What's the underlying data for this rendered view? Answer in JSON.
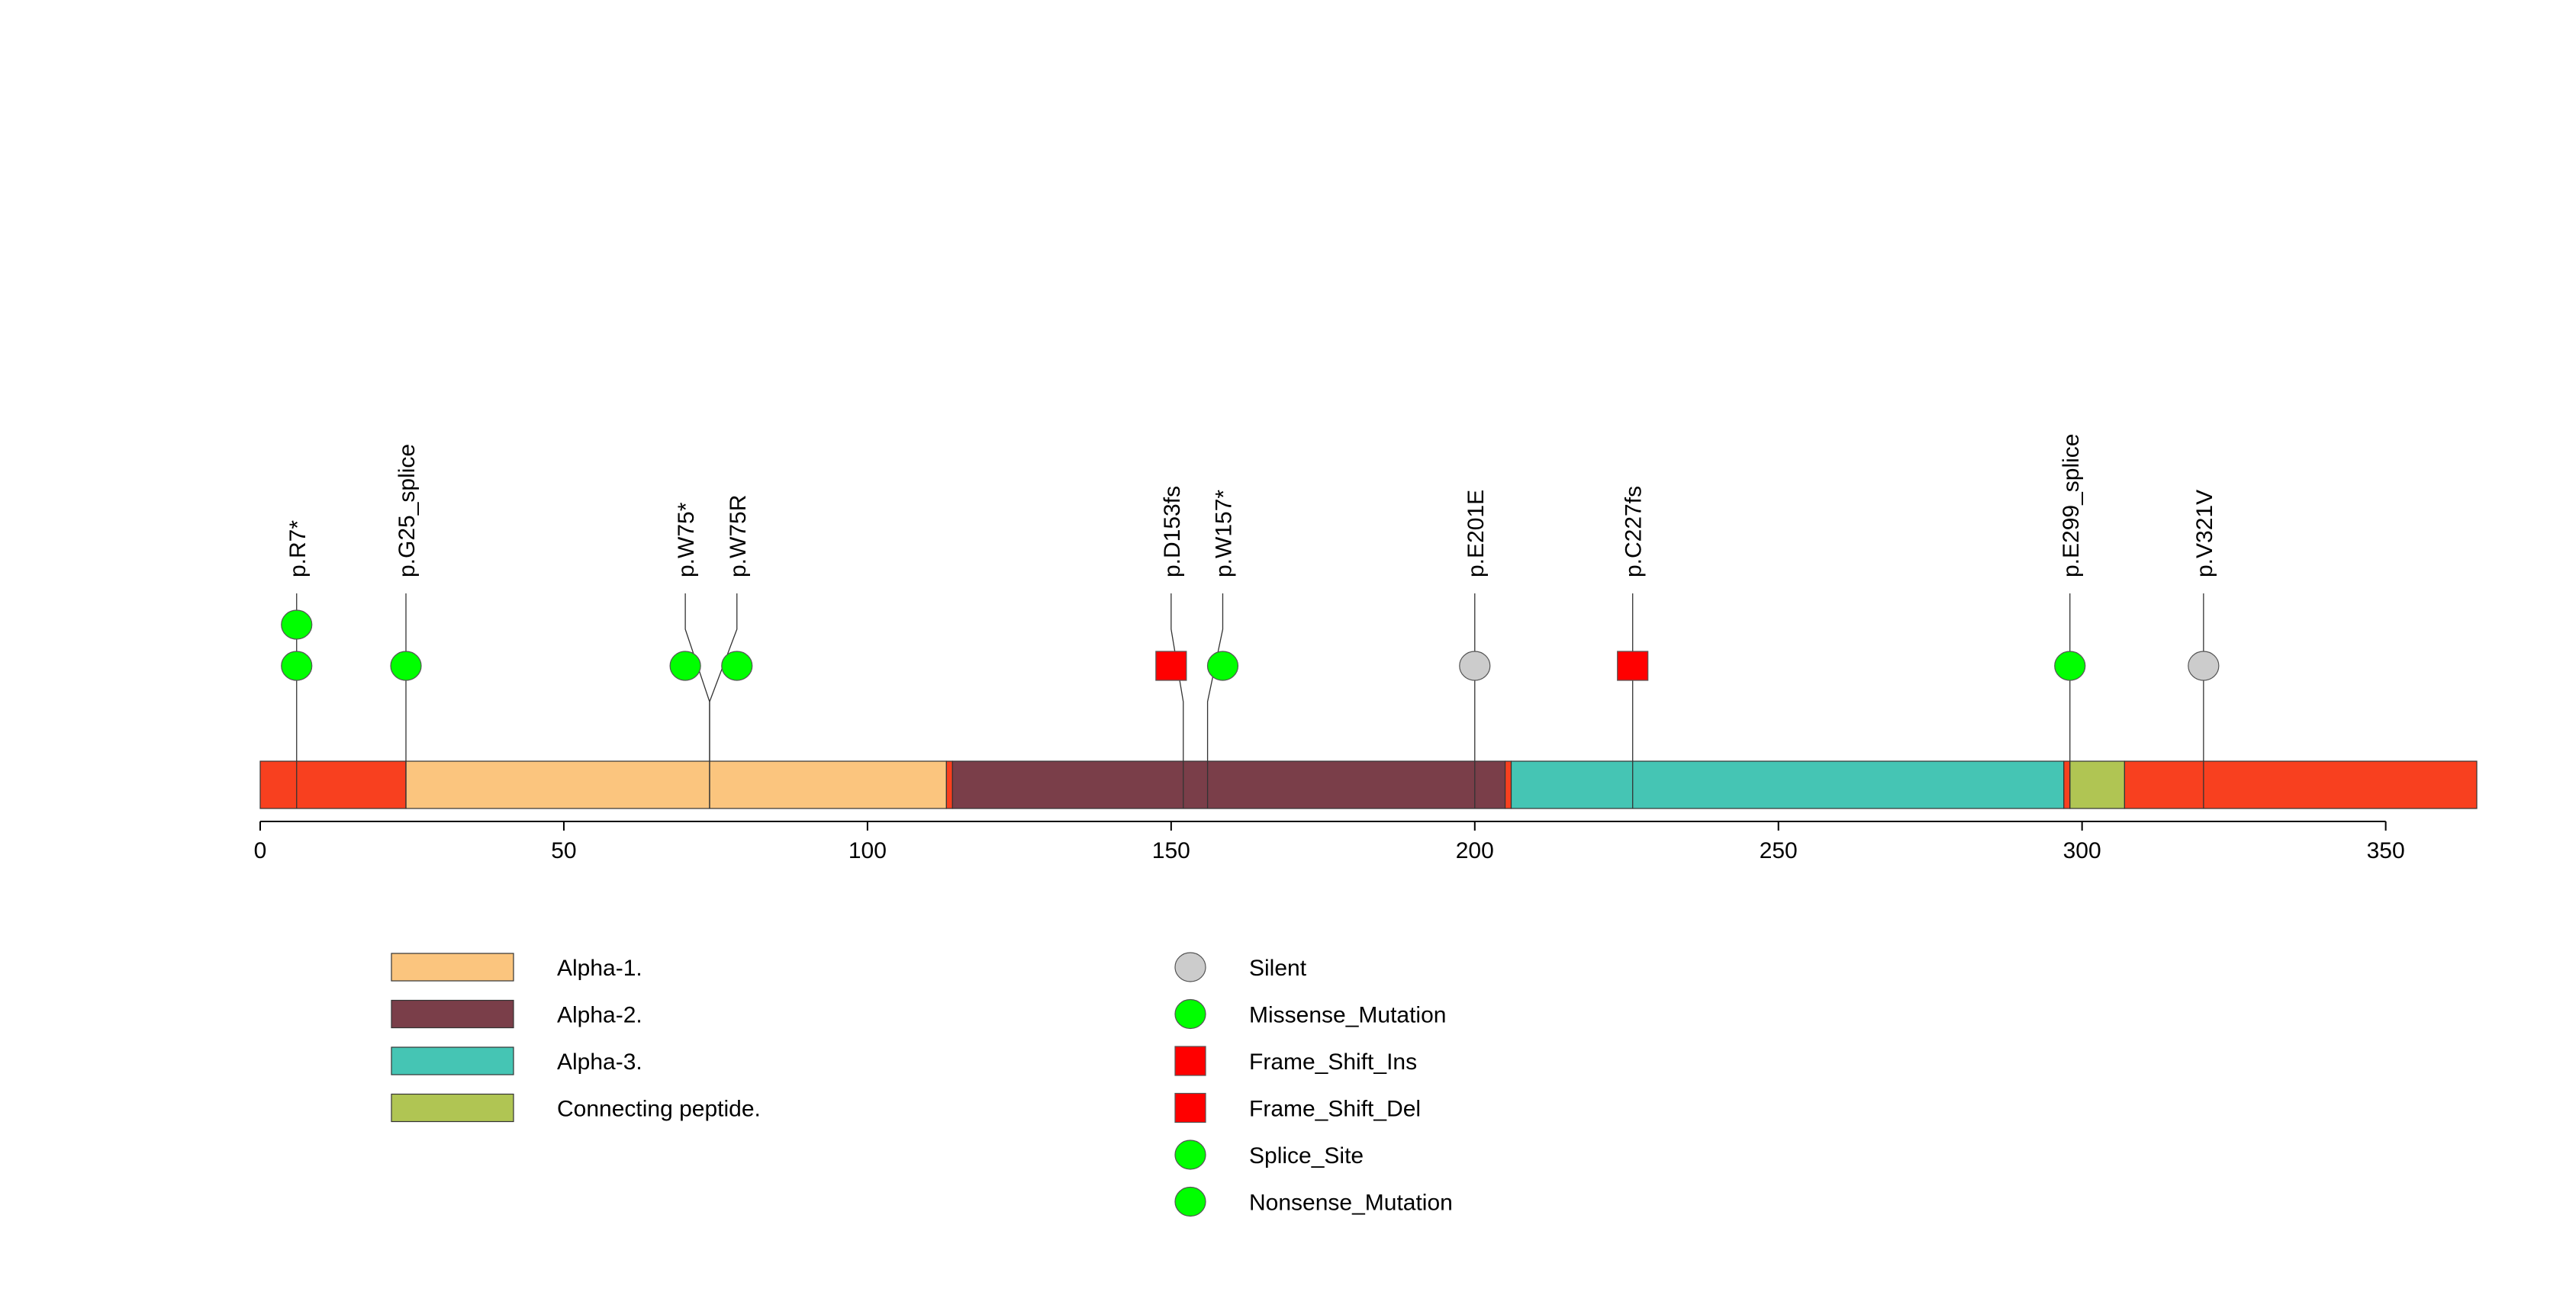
{
  "chart_data": {
    "type": "lollipop",
    "protein_length": 365,
    "x_axis": {
      "range": [
        0,
        365
      ],
      "ticks": [
        0,
        50,
        100,
        150,
        200,
        250,
        300,
        350
      ]
    },
    "segments": [
      {
        "start": 0,
        "end": 24,
        "color": "#f8401f",
        "label": ""
      },
      {
        "start": 24,
        "end": 113,
        "color": "#fbc57e",
        "label": "Alpha-1."
      },
      {
        "start": 113,
        "end": 114,
        "color": "#f8401f",
        "label": ""
      },
      {
        "start": 114,
        "end": 205,
        "color": "#7a3e49",
        "label": "Alpha-2."
      },
      {
        "start": 205,
        "end": 206,
        "color": "#f8401f",
        "label": ""
      },
      {
        "start": 206,
        "end": 297,
        "color": "#45c5b4",
        "label": "Alpha-3."
      },
      {
        "start": 297,
        "end": 298,
        "color": "#f8401f",
        "label": ""
      },
      {
        "start": 298,
        "end": 307,
        "color": "#b0c553",
        "label": "Connecting peptide."
      },
      {
        "start": 307,
        "end": 365,
        "color": "#f8401f",
        "label": ""
      }
    ],
    "mutations": [
      {
        "label": "p.R7*",
        "position": 6,
        "label_position": 6,
        "count": 2,
        "shape": "circle",
        "color": "#00ff00"
      },
      {
        "label": "p.G25_splice",
        "position": 24,
        "label_position": 24,
        "count": 1,
        "shape": "circle",
        "color": "#00ff00"
      },
      {
        "label": "p.W75*",
        "position": 74,
        "label_position": 70,
        "count": 1,
        "shape": "circle",
        "color": "#00ff00"
      },
      {
        "label": "p.W75R",
        "position": 74,
        "label_position": 78.5,
        "count": 1,
        "shape": "circle",
        "color": "#00ff00"
      },
      {
        "label": "p.D153fs",
        "position": 152,
        "label_position": 150,
        "count": 1,
        "shape": "square",
        "color": "#ff0000"
      },
      {
        "label": "p.W157*",
        "position": 156,
        "label_position": 158.5,
        "count": 1,
        "shape": "circle",
        "color": "#00ff00"
      },
      {
        "label": "p.E201E",
        "position": 200,
        "label_position": 200,
        "count": 1,
        "shape": "circle",
        "color": "#cccccc"
      },
      {
        "label": "p.C227fs",
        "position": 226,
        "label_position": 226,
        "count": 1,
        "shape": "square",
        "color": "#ff0000"
      },
      {
        "label": "p.E299_splice",
        "position": 298,
        "label_position": 298,
        "count": 1,
        "shape": "circle",
        "color": "#00ff00"
      },
      {
        "label": "p.V321V",
        "position": 320,
        "label_position": 320,
        "count": 1,
        "shape": "circle",
        "color": "#cccccc"
      }
    ],
    "domain_legend": [
      {
        "label": "Alpha-1.",
        "color": "#fbc57e"
      },
      {
        "label": "Alpha-2.",
        "color": "#7a3e49"
      },
      {
        "label": "Alpha-3.",
        "color": "#45c5b4"
      },
      {
        "label": "Connecting peptide.",
        "color": "#b0c553"
      }
    ],
    "mutation_legend": [
      {
        "label": "Silent",
        "shape": "circle",
        "color": "#cccccc"
      },
      {
        "label": "Missense_Mutation",
        "shape": "circle",
        "color": "#00ff00"
      },
      {
        "label": "Frame_Shift_Ins",
        "shape": "square",
        "color": "#ff0000"
      },
      {
        "label": "Frame_Shift_Del",
        "shape": "square",
        "color": "#ff0000"
      },
      {
        "label": "Splice_Site",
        "shape": "circle",
        "color": "#00ff00"
      },
      {
        "label": "Nonsense_Mutation",
        "shape": "circle",
        "color": "#00ff00"
      }
    ]
  }
}
